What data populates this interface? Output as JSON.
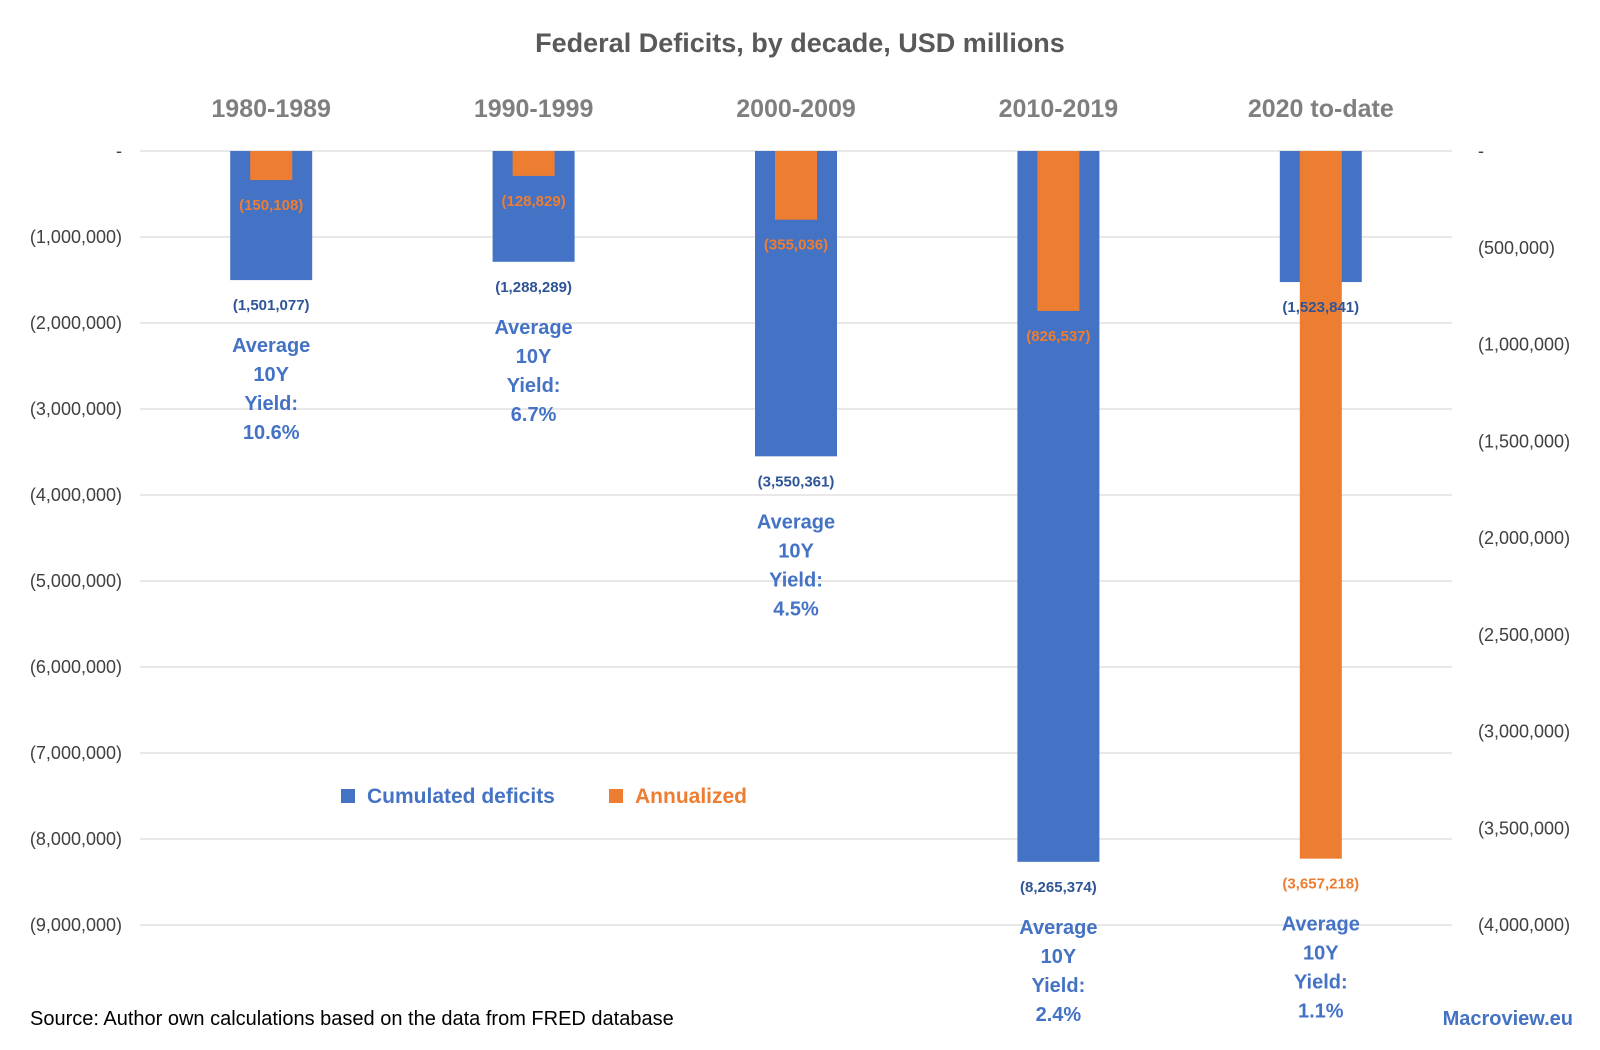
{
  "chart_data": {
    "type": "bar",
    "title": "Federal Deficits, by decade, USD millions",
    "categories": [
      "1980-1989",
      "1990-1999",
      "2000-2009",
      "2010-2019",
      "2020 to-date"
    ],
    "series": [
      {
        "name": "Cumulated deficits",
        "axis": "left",
        "color": "#4472c4",
        "values": [
          -1501077,
          -1288289,
          -3550361,
          -8265374,
          -1523841
        ],
        "labels": [
          "(1,501,077)",
          "(1,288,289)",
          "(3,550,361)",
          "(8,265,374)",
          "(1,523,841)"
        ]
      },
      {
        "name": "Annualized",
        "axis": "right",
        "color": "#ed7d31",
        "values": [
          -150108,
          -128829,
          -355036,
          -826537,
          -3657218
        ],
        "labels": [
          "(150,108)",
          "(128,829)",
          "(355,036)",
          "(826,537)",
          "(3,657,218)"
        ]
      }
    ],
    "y_left": {
      "min": -9000000,
      "max": 0,
      "ticks": [
        0,
        -1000000,
        -2000000,
        -3000000,
        -4000000,
        -5000000,
        -6000000,
        -7000000,
        -8000000,
        -9000000
      ],
      "tick_labels": [
        "-",
        "(1,000,000)",
        "(2,000,000)",
        "(3,000,000)",
        "(4,000,000)",
        "(5,000,000)",
        "(6,000,000)",
        "(7,000,000)",
        "(8,000,000)",
        "(9,000,000)"
      ]
    },
    "y_right": {
      "min": -4000000,
      "max": 0,
      "ticks": [
        0,
        -500000,
        -1000000,
        -1500000,
        -2000000,
        -2500000,
        -3000000,
        -3500000,
        -4000000
      ],
      "tick_labels": [
        "-",
        "(500,000)",
        "(1,000,000)",
        "(1,500,000)",
        "(2,000,000)",
        "(2,500,000)",
        "(3,000,000)",
        "(3,500,000)",
        "(4,000,000)"
      ]
    },
    "grid": true,
    "legend": "bottom-left inside plot",
    "annotations": [
      [
        "Average",
        "10Y",
        "Yield:",
        "10.6%"
      ],
      [
        "Average",
        "10Y",
        "Yield:",
        "6.7%"
      ],
      [
        "Average",
        "10Y",
        "Yield:",
        "4.5%"
      ],
      [
        "Average",
        "10Y",
        "Yield:",
        "2.4%"
      ],
      [
        "Average",
        "10Y",
        "Yield:",
        "1.1%"
      ]
    ],
    "source": "Source: Author own calculations based on the data from FRED database",
    "brand": "Macroview.eu",
    "gridColor": "#d9d9d9"
  }
}
